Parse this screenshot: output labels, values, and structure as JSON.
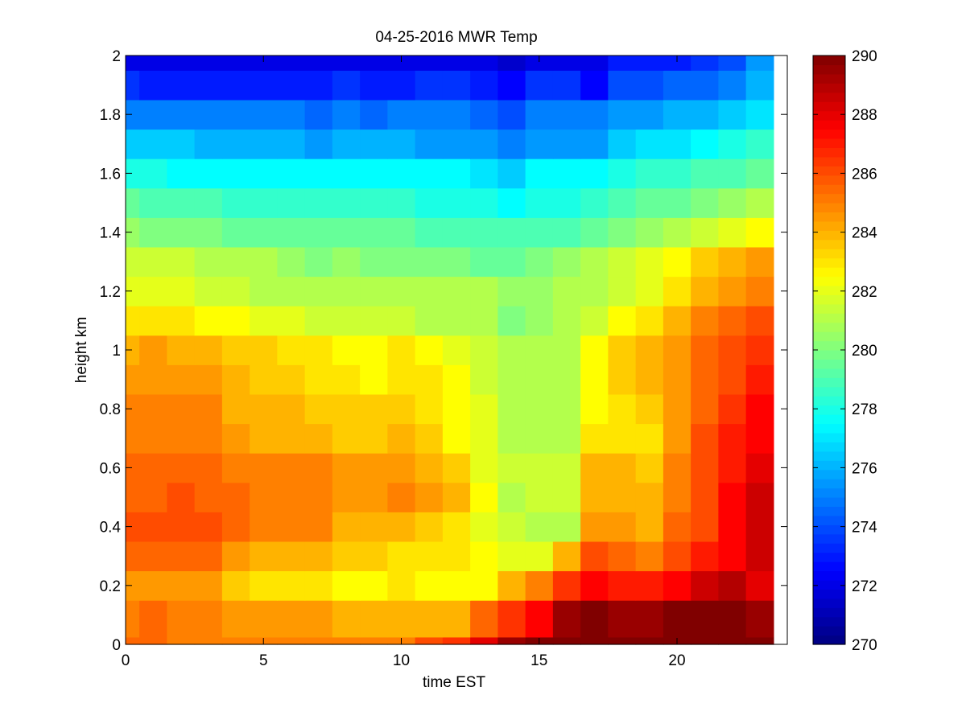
{
  "chart_data": {
    "type": "heatmap",
    "title": "04-25-2016 MWR Temp",
    "xlabel": "time EST",
    "ylabel": "height km",
    "xlim": [
      0,
      24
    ],
    "ylim": [
      0,
      2
    ],
    "x_ticks": [
      0,
      5,
      10,
      15,
      20
    ],
    "x_tick_labels": [
      "0",
      "5",
      "10",
      "15",
      "20"
    ],
    "y_ticks": [
      0,
      0.2,
      0.4,
      0.6,
      0.8,
      1.0,
      1.2,
      1.4,
      1.6,
      1.8,
      2.0
    ],
    "y_tick_labels": [
      "0",
      "0.2",
      "0.4",
      "0.6",
      "0.8",
      "1",
      "1.2",
      "1.4",
      "1.6",
      "1.8",
      "2"
    ],
    "colorbar": {
      "colormap": "jet",
      "clim": [
        270,
        290
      ],
      "ticks": [
        270,
        272,
        274,
        276,
        278,
        280,
        282,
        284,
        286,
        288,
        290
      ],
      "tick_labels": [
        "270",
        "272",
        "274",
        "276",
        "278",
        "280",
        "282",
        "284",
        "286",
        "288",
        "290"
      ]
    },
    "x": [
      0.25,
      1,
      2,
      3,
      4,
      5,
      6,
      7,
      8,
      9,
      10,
      11,
      12,
      13,
      14,
      15,
      16,
      17,
      18,
      19,
      20,
      21,
      22,
      23
    ],
    "x_edges": [
      0,
      0.5,
      1.5,
      2.5,
      3.5,
      4.5,
      5.5,
      6.5,
      7.5,
      8.5,
      9.5,
      10.5,
      11.5,
      12.5,
      13.5,
      14.5,
      15.5,
      16.5,
      17.5,
      18.5,
      19.5,
      20.5,
      21.5,
      22.5,
      23.5
    ],
    "y": [
      0,
      0.1,
      0.2,
      0.3,
      0.4,
      0.5,
      0.6,
      0.7,
      0.8,
      0.9,
      1.0,
      1.1,
      1.2,
      1.3,
      1.4,
      1.5,
      1.6,
      1.7,
      1.8,
      1.9,
      2.0
    ],
    "y_edges": [
      0,
      0.025,
      0.15,
      0.25,
      0.35,
      0.45,
      0.55,
      0.65,
      0.75,
      0.85,
      0.95,
      1.05,
      1.15,
      1.25,
      1.35,
      1.45,
      1.55,
      1.65,
      1.75,
      1.85,
      1.95,
      2.0
    ],
    "z": [
      [
        285.5,
        285.5,
        285.0,
        285.0,
        285.0,
        285.0,
        285.0,
        285.0,
        285.0,
        285.0,
        285.0,
        286.0,
        286.5,
        288.0,
        289.5,
        290.0,
        290.0,
        290.0,
        290.0,
        290.0,
        290.0,
        290.0,
        290.0,
        290.0
      ],
      [
        285.0,
        285.5,
        285.0,
        285.0,
        284.5,
        284.5,
        284.5,
        284.5,
        284.0,
        284.0,
        284.0,
        284.0,
        284.0,
        285.5,
        286.5,
        287.5,
        289.5,
        290.0,
        289.5,
        289.5,
        290.0,
        290.0,
        290.0,
        289.5
      ],
      [
        284.5,
        284.5,
        284.5,
        284.5,
        283.5,
        283.0,
        283.0,
        283.0,
        282.5,
        282.5,
        283.0,
        282.5,
        282.5,
        282.5,
        284.0,
        285.0,
        286.5,
        287.5,
        287.0,
        287.0,
        287.5,
        288.5,
        289.0,
        288.0
      ],
      [
        285.5,
        285.5,
        285.5,
        285.5,
        284.5,
        284.0,
        284.0,
        284.0,
        283.5,
        283.5,
        283.0,
        283.0,
        283.0,
        282.5,
        282.0,
        282.0,
        284.0,
        286.0,
        285.5,
        285.0,
        286.0,
        287.0,
        287.5,
        288.5
      ],
      [
        286.0,
        286.0,
        286.0,
        286.0,
        285.5,
        285.0,
        285.0,
        285.0,
        284.0,
        284.0,
        284.0,
        283.5,
        283.0,
        282.0,
        281.5,
        281.0,
        281.0,
        284.5,
        284.5,
        284.0,
        285.5,
        286.0,
        287.5,
        288.5
      ],
      [
        285.5,
        285.5,
        286.0,
        285.5,
        285.5,
        285.0,
        285.0,
        285.0,
        284.5,
        284.5,
        285.0,
        284.5,
        284.0,
        282.5,
        281.0,
        281.5,
        281.5,
        284.0,
        284.0,
        284.0,
        285.0,
        286.0,
        287.5,
        288.5
      ],
      [
        285.5,
        285.5,
        285.5,
        285.5,
        285.0,
        285.0,
        285.0,
        285.0,
        284.5,
        284.5,
        284.5,
        284.0,
        283.5,
        282.0,
        281.5,
        281.5,
        281.5,
        284.0,
        284.0,
        283.5,
        285.0,
        286.0,
        287.0,
        288.0
      ],
      [
        285.0,
        285.0,
        285.0,
        285.0,
        284.5,
        284.0,
        284.0,
        284.0,
        283.5,
        283.5,
        284.0,
        283.5,
        282.5,
        282.0,
        281.0,
        281.0,
        281.0,
        283.0,
        283.0,
        283.0,
        284.5,
        286.0,
        287.0,
        287.5
      ],
      [
        285.0,
        285.0,
        285.0,
        285.0,
        284.0,
        284.0,
        284.0,
        283.5,
        283.5,
        283.5,
        283.5,
        283.0,
        282.5,
        282.0,
        281.0,
        281.0,
        281.0,
        282.5,
        283.0,
        283.5,
        284.5,
        285.5,
        286.5,
        287.5
      ],
      [
        284.5,
        284.5,
        284.5,
        284.5,
        284.0,
        283.5,
        283.5,
        283.0,
        283.0,
        282.5,
        283.0,
        283.0,
        282.5,
        281.5,
        281.0,
        281.0,
        281.0,
        282.5,
        283.5,
        284.0,
        284.5,
        285.5,
        286.0,
        287.0
      ],
      [
        284.0,
        284.5,
        284.0,
        284.0,
        283.5,
        283.5,
        283.0,
        283.0,
        282.5,
        282.5,
        283.0,
        282.5,
        282.0,
        281.5,
        281.0,
        281.0,
        281.0,
        282.5,
        283.5,
        284.0,
        284.5,
        285.5,
        286.0,
        286.5
      ],
      [
        283.0,
        283.0,
        283.0,
        282.5,
        282.5,
        282.0,
        282.0,
        281.5,
        281.5,
        281.5,
        281.5,
        281.0,
        281.0,
        281.0,
        280.0,
        280.5,
        281.0,
        281.5,
        282.5,
        283.0,
        284.0,
        285.0,
        285.5,
        286.0
      ],
      [
        282.0,
        282.0,
        282.0,
        281.5,
        281.5,
        281.0,
        281.0,
        281.0,
        281.0,
        281.0,
        281.0,
        281.0,
        281.0,
        281.0,
        280.5,
        280.5,
        281.0,
        281.0,
        281.5,
        282.0,
        283.0,
        284.0,
        284.5,
        285.0
      ],
      [
        281.5,
        281.5,
        281.5,
        281.0,
        281.0,
        281.0,
        280.5,
        280.0,
        280.5,
        280.0,
        280.0,
        280.0,
        280.0,
        279.5,
        279.5,
        280.0,
        280.5,
        281.0,
        281.5,
        282.0,
        282.5,
        283.5,
        284.0,
        284.5
      ],
      [
        280.5,
        280.0,
        280.0,
        280.0,
        279.5,
        279.5,
        279.5,
        279.5,
        279.5,
        279.5,
        279.5,
        279.0,
        279.0,
        279.0,
        279.0,
        279.0,
        279.0,
        279.5,
        280.0,
        280.5,
        281.0,
        281.5,
        282.0,
        282.5
      ],
      [
        279.5,
        279.0,
        279.0,
        279.0,
        278.5,
        278.5,
        278.5,
        278.5,
        278.5,
        278.5,
        278.5,
        278.0,
        278.0,
        278.0,
        277.5,
        278.0,
        278.0,
        278.5,
        279.0,
        279.5,
        279.5,
        280.0,
        280.5,
        281.0
      ],
      [
        278.0,
        278.0,
        277.5,
        277.5,
        277.5,
        277.5,
        277.5,
        277.5,
        277.5,
        277.5,
        277.5,
        277.5,
        277.5,
        277.0,
        276.5,
        277.5,
        277.5,
        277.5,
        278.0,
        278.5,
        278.5,
        279.0,
        279.0,
        279.5
      ],
      [
        276.5,
        276.5,
        276.5,
        276.0,
        276.0,
        276.0,
        276.0,
        275.5,
        276.0,
        276.0,
        276.0,
        275.5,
        275.5,
        275.5,
        275.0,
        275.5,
        275.5,
        275.5,
        276.5,
        277.0,
        277.0,
        277.5,
        278.0,
        278.5
      ],
      [
        275.0,
        275.0,
        275.0,
        275.0,
        275.0,
        275.0,
        275.0,
        274.5,
        275.0,
        274.5,
        275.0,
        275.0,
        275.0,
        274.5,
        274.0,
        275.0,
        275.0,
        275.0,
        275.5,
        275.5,
        276.0,
        276.0,
        276.5,
        277.0
      ],
      [
        273.5,
        273.0,
        273.0,
        273.0,
        273.0,
        273.0,
        273.0,
        273.0,
        273.5,
        273.0,
        273.0,
        273.5,
        273.5,
        273.0,
        272.5,
        273.5,
        273.5,
        272.5,
        274.0,
        274.0,
        274.5,
        274.5,
        275.0,
        276.0
      ],
      [
        272.0,
        272.0,
        272.0,
        272.0,
        272.0,
        272.0,
        272.0,
        272.0,
        272.0,
        272.0,
        272.0,
        272.0,
        272.0,
        272.0,
        271.5,
        272.0,
        272.0,
        272.0,
        273.0,
        273.0,
        273.0,
        273.5,
        274.0,
        275.5
      ]
    ]
  }
}
